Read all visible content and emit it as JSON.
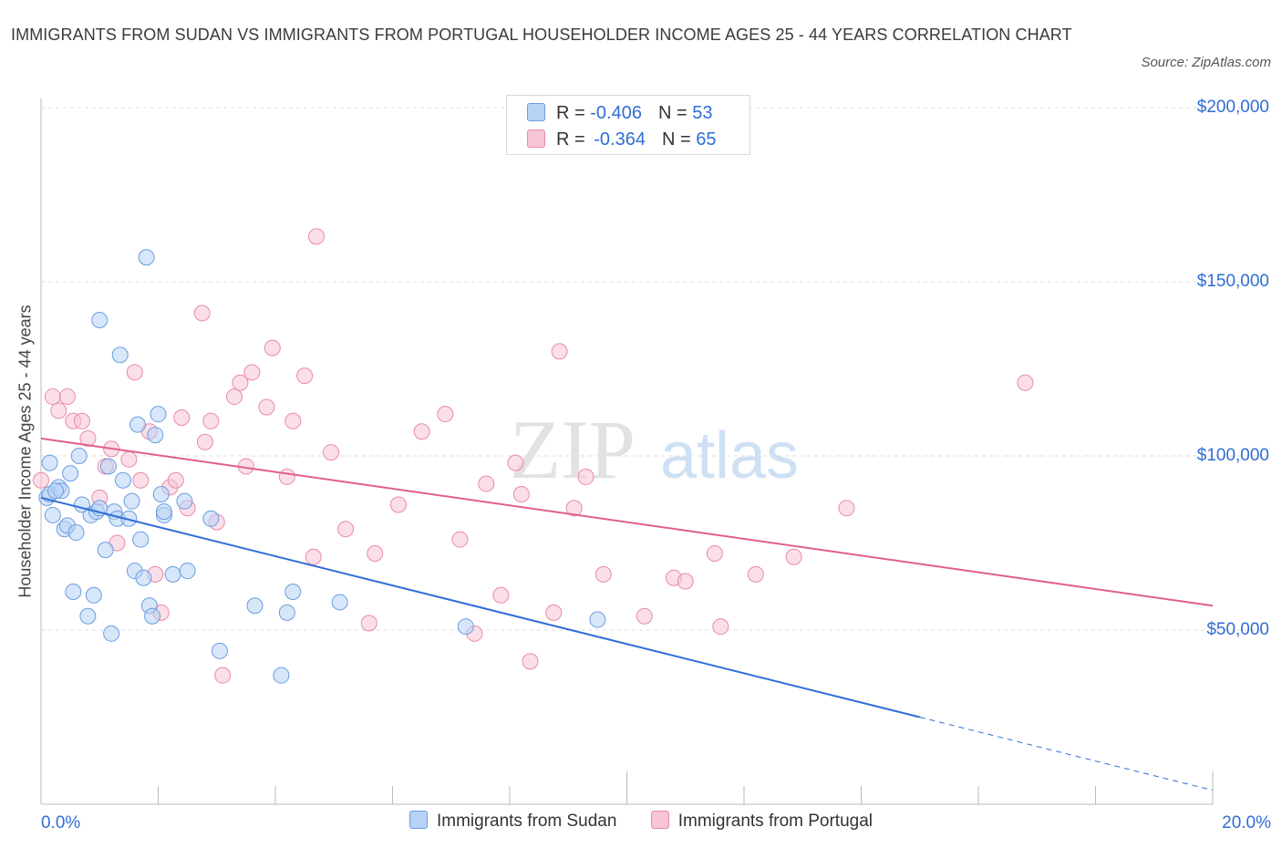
{
  "title": "IMMIGRANTS FROM SUDAN VS IMMIGRANTS FROM PORTUGAL HOUSEHOLDER INCOME AGES 25 - 44 YEARS CORRELATION CHART",
  "source": "Source: ZipAtlas.com",
  "watermark": {
    "zip": "ZIP",
    "atlas": "atlas"
  },
  "legend_top": [
    {
      "r_label": "R = ",
      "r_value": "-0.406",
      "n_label": "N = ",
      "n_value": "53"
    },
    {
      "r_label": "R = ",
      "r_value": "-0.364",
      "n_label": "N = ",
      "n_value": "65"
    }
  ],
  "colors": {
    "sudan_fill": "#b8d2f5",
    "sudan_stroke": "#6a9ee0",
    "sudan_line": "#2f6ed6",
    "portugal_fill": "#f8c5d5",
    "portugal_stroke": "#e98aaa",
    "portugal_line": "#e0608a",
    "grid": "#dddddd",
    "axis_text": "#2f6ed6"
  },
  "chart_data": {
    "type": "scatter",
    "xlabel": "",
    "ylabel": "Householder Income Ages 25 - 44 years",
    "xlim": [
      0,
      20
    ],
    "ylim": [
      0,
      200000
    ],
    "x_tick_labels": [
      {
        "value": 0,
        "label": "0.0%"
      },
      {
        "value": 20,
        "label": "20.0%"
      }
    ],
    "y_tick_labels": [
      {
        "value": 50000,
        "label": "$50,000"
      },
      {
        "value": 100000,
        "label": "$100,000"
      },
      {
        "value": 150000,
        "label": "$150,000"
      },
      {
        "value": 200000,
        "label": "$200,000"
      }
    ],
    "legend_position": "bottom",
    "grid": true,
    "series": [
      {
        "name": "Immigrants from Sudan",
        "color": "#6a9ee0",
        "points": [
          [
            0.1,
            88000
          ],
          [
            0.15,
            89000
          ],
          [
            0.15,
            98000
          ],
          [
            0.2,
            83000
          ],
          [
            0.3,
            91000
          ],
          [
            0.35,
            90000
          ],
          [
            0.4,
            79000
          ],
          [
            0.45,
            80000
          ],
          [
            0.5,
            95000
          ],
          [
            0.55,
            61000
          ],
          [
            0.6,
            78000
          ],
          [
            0.65,
            100000
          ],
          [
            0.7,
            86000
          ],
          [
            0.8,
            54000
          ],
          [
            0.85,
            83000
          ],
          [
            0.9,
            60000
          ],
          [
            0.95,
            84000
          ],
          [
            1.0,
            85000
          ],
          [
            1.0,
            139000
          ],
          [
            1.1,
            73000
          ],
          [
            1.15,
            97000
          ],
          [
            1.2,
            49000
          ],
          [
            1.25,
            84000
          ],
          [
            1.3,
            82000
          ],
          [
            1.35,
            129000
          ],
          [
            1.4,
            93000
          ],
          [
            1.5,
            82000
          ],
          [
            1.55,
            87000
          ],
          [
            1.6,
            67000
          ],
          [
            1.65,
            109000
          ],
          [
            1.7,
            76000
          ],
          [
            1.75,
            65000
          ],
          [
            1.8,
            157000
          ],
          [
            1.85,
            57000
          ],
          [
            1.9,
            54000
          ],
          [
            1.95,
            106000
          ],
          [
            2.0,
            112000
          ],
          [
            2.05,
            89000
          ],
          [
            2.1,
            83000
          ],
          [
            2.1,
            84000
          ],
          [
            2.25,
            66000
          ],
          [
            2.45,
            87000
          ],
          [
            2.5,
            67000
          ],
          [
            3.05,
            44000
          ],
          [
            3.65,
            57000
          ],
          [
            4.1,
            37000
          ],
          [
            4.2,
            55000
          ],
          [
            4.3,
            61000
          ],
          [
            5.1,
            58000
          ],
          [
            7.25,
            51000
          ],
          [
            9.5,
            53000
          ],
          [
            2.9,
            82000
          ],
          [
            0.25,
            90000
          ]
        ],
        "trend": {
          "x": [
            0,
            15
          ],
          "y": [
            88000,
            25000
          ],
          "dashed_extension": {
            "x": [
              15,
              20
            ],
            "y": [
              25000,
              4000
            ]
          }
        }
      },
      {
        "name": "Immigrants from Portugal",
        "color": "#e98aaa",
        "points": [
          [
            0.0,
            93000
          ],
          [
            0.2,
            117000
          ],
          [
            0.3,
            113000
          ],
          [
            0.45,
            117000
          ],
          [
            0.55,
            110000
          ],
          [
            0.7,
            110000
          ],
          [
            0.8,
            105000
          ],
          [
            1.0,
            88000
          ],
          [
            1.1,
            97000
          ],
          [
            1.2,
            102000
          ],
          [
            1.3,
            75000
          ],
          [
            1.5,
            99000
          ],
          [
            1.6,
            124000
          ],
          [
            1.7,
            93000
          ],
          [
            1.85,
            107000
          ],
          [
            1.95,
            66000
          ],
          [
            2.05,
            55000
          ],
          [
            2.2,
            91000
          ],
          [
            2.3,
            93000
          ],
          [
            2.4,
            111000
          ],
          [
            2.5,
            85000
          ],
          [
            2.75,
            141000
          ],
          [
            2.8,
            104000
          ],
          [
            2.9,
            110000
          ],
          [
            3.0,
            81000
          ],
          [
            3.1,
            37000
          ],
          [
            3.3,
            117000
          ],
          [
            3.4,
            121000
          ],
          [
            3.5,
            97000
          ],
          [
            3.6,
            124000
          ],
          [
            3.85,
            114000
          ],
          [
            3.95,
            131000
          ],
          [
            4.2,
            94000
          ],
          [
            4.3,
            110000
          ],
          [
            4.5,
            123000
          ],
          [
            4.65,
            71000
          ],
          [
            4.7,
            163000
          ],
          [
            4.95,
            101000
          ],
          [
            5.2,
            79000
          ],
          [
            5.6,
            52000
          ],
          [
            5.7,
            72000
          ],
          [
            6.1,
            86000
          ],
          [
            6.5,
            107000
          ],
          [
            6.9,
            112000
          ],
          [
            7.15,
            76000
          ],
          [
            7.4,
            49000
          ],
          [
            7.6,
            92000
          ],
          [
            7.85,
            60000
          ],
          [
            8.1,
            98000
          ],
          [
            8.2,
            89000
          ],
          [
            8.35,
            41000
          ],
          [
            8.75,
            55000
          ],
          [
            8.85,
            130000
          ],
          [
            9.1,
            85000
          ],
          [
            9.3,
            94000
          ],
          [
            9.6,
            66000
          ],
          [
            10.3,
            54000
          ],
          [
            10.8,
            65000
          ],
          [
            11.0,
            64000
          ],
          [
            11.5,
            72000
          ],
          [
            11.6,
            51000
          ],
          [
            12.2,
            66000
          ],
          [
            12.85,
            71000
          ],
          [
            13.75,
            85000
          ],
          [
            16.8,
            121000
          ]
        ],
        "trend": {
          "x": [
            0,
            20
          ],
          "y": [
            105000,
            57000
          ]
        }
      }
    ]
  }
}
